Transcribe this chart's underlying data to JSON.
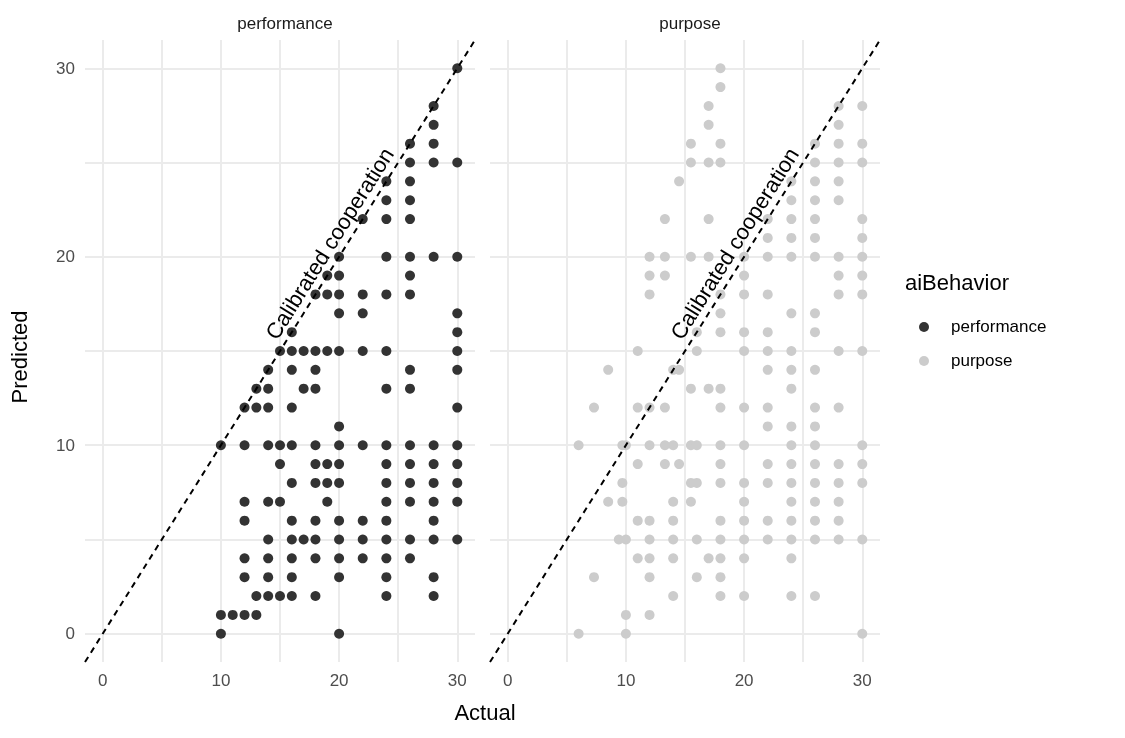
{
  "chart_data": [
    {
      "type": "scatter",
      "title": "performance",
      "xlabel": "Actual",
      "ylabel": "Predicted",
      "xlim": [
        -1.5,
        31.5
      ],
      "ylim": [
        -1.5,
        31.5
      ],
      "xticks": [
        0,
        {
          "value": 5,
          "label": null
        },
        10,
        {
          "value": 15,
          "label": null
        },
        20,
        {
          "value": 25,
          "label": null
        },
        30
      ],
      "yticks": [
        0,
        {
          "value": 5,
          "label": null
        },
        10,
        {
          "value": 15,
          "label": null
        },
        20,
        {
          "value": 25,
          "label": null
        },
        30
      ],
      "grid": true,
      "marker": "circle",
      "annotations": [
        "Calibrated cooperation"
      ],
      "series": [
        {
          "name": "performance",
          "color": "#333333",
          "x": [
            30,
            28,
            28,
            26,
            28,
            26,
            28,
            30,
            24,
            26,
            24,
            26,
            22,
            24,
            26,
            20,
            24,
            26,
            28,
            30,
            19,
            20,
            26,
            18,
            19,
            20,
            22,
            24,
            26,
            20,
            22,
            30,
            16,
            30,
            15,
            16,
            17,
            18,
            19,
            20,
            22,
            24,
            30,
            14,
            16,
            18,
            26,
            30,
            13,
            14,
            17,
            18,
            24,
            26,
            12,
            13,
            14,
            16,
            30,
            20,
            10,
            12,
            14,
            15,
            16,
            18,
            20,
            22,
            24,
            26,
            28,
            30,
            15,
            18,
            19,
            20,
            24,
            26,
            28,
            30,
            16,
            18,
            19,
            20,
            24,
            26,
            28,
            30,
            12,
            14,
            15,
            19,
            24,
            26,
            28,
            30,
            12,
            16,
            18,
            20,
            22,
            24,
            28,
            14,
            16,
            17,
            18,
            20,
            22,
            24,
            26,
            28,
            30,
            12,
            14,
            16,
            18,
            20,
            22,
            24,
            26,
            12,
            14,
            16,
            20,
            24,
            28,
            13,
            14,
            15,
            16,
            18,
            24,
            28,
            10,
            11,
            12,
            13,
            10,
            20
          ],
          "values": [
            30,
            28,
            27,
            26,
            26,
            25,
            25,
            25,
            24,
            24,
            23,
            23,
            22,
            22,
            22,
            20,
            20,
            20,
            20,
            20,
            19,
            19,
            19,
            18,
            18,
            18,
            18,
            18,
            18,
            17,
            17,
            17,
            16,
            16,
            15,
            15,
            15,
            15,
            15,
            15,
            15,
            15,
            15,
            14,
            14,
            14,
            14,
            14,
            13,
            13,
            13,
            13,
            13,
            13,
            12,
            12,
            12,
            12,
            12,
            11,
            10,
            10,
            10,
            10,
            10,
            10,
            10,
            10,
            10,
            10,
            10,
            10,
            9,
            9,
            9,
            9,
            9,
            9,
            9,
            9,
            8,
            8,
            8,
            8,
            8,
            8,
            8,
            8,
            7,
            7,
            7,
            7,
            7,
            7,
            7,
            7,
            6,
            6,
            6,
            6,
            6,
            6,
            6,
            5,
            5,
            5,
            5,
            5,
            5,
            5,
            5,
            5,
            5,
            4,
            4,
            4,
            4,
            4,
            4,
            4,
            4,
            3,
            3,
            3,
            3,
            3,
            3,
            2,
            2,
            2,
            2,
            2,
            2,
            2,
            1,
            1,
            1,
            1,
            0,
            0
          ]
        },
        {
          "type": "line",
          "color": "#000000",
          "line_style": "dashed",
          "marker": "none",
          "x": [
            -1.5,
            31.5
          ],
          "values": [
            -1.5,
            31.5
          ]
        }
      ]
    },
    {
      "type": "scatter",
      "title": "purpose",
      "xlim": [
        -1.5,
        31.5
      ],
      "ylim": [
        -1.5,
        31.5
      ],
      "xticks": [
        0,
        {
          "value": 5,
          "label": null
        },
        10,
        {
          "value": 15,
          "label": null
        },
        20,
        {
          "value": 25,
          "label": null
        },
        30
      ],
      "yticks": [
        0,
        {
          "value": 5,
          "label": null
        },
        10,
        {
          "value": 15,
          "label": null
        },
        20,
        {
          "value": 25,
          "label": null
        },
        30
      ],
      "grid": true,
      "marker": "circle",
      "tick_labels": "x",
      "legend": "right",
      "legend_title": "aiBehavior",
      "annotations": [
        "Calibrated cooperation"
      ],
      "series": [
        {
          "name": "purpose",
          "color": "#cccccc",
          "x": [
            18,
            18,
            17,
            28,
            30,
            17,
            28,
            15.5,
            18,
            26,
            28,
            30,
            15.5,
            17,
            18,
            26,
            28,
            30,
            14.5,
            24,
            26,
            28,
            24,
            26,
            28,
            13.3,
            17,
            22,
            24,
            26,
            30,
            22,
            24,
            26,
            30,
            12,
            13.3,
            15.5,
            17,
            20,
            22,
            24,
            26,
            28,
            30,
            12,
            13.3,
            20,
            28,
            30,
            12,
            18,
            20,
            22,
            28,
            30,
            18,
            24,
            26,
            16,
            18,
            20,
            22,
            26,
            11,
            16,
            20,
            22,
            24,
            28,
            30,
            8.5,
            14,
            14.5,
            22,
            24,
            26,
            15.5,
            17,
            18,
            24,
            7.3,
            11,
            12,
            13.3,
            18,
            20,
            22,
            26,
            28,
            22,
            24,
            26,
            6,
            9.7,
            10,
            12,
            13.3,
            14,
            15.5,
            16,
            18,
            20,
            24,
            26,
            30,
            11,
            13.3,
            14.5,
            18,
            22,
            24,
            26,
            28,
            30,
            9.7,
            15.5,
            16,
            18,
            20,
            22,
            24,
            26,
            28,
            30,
            8.5,
            9.7,
            14,
            15.5,
            20,
            24,
            26,
            28,
            11,
            12,
            14,
            18,
            20,
            22,
            24,
            26,
            28,
            9.4,
            10,
            12,
            14,
            16,
            18,
            20,
            22,
            24,
            26,
            28,
            30,
            11,
            12,
            14,
            17,
            18,
            20,
            24,
            7.3,
            12,
            16,
            18,
            14,
            18,
            20,
            24,
            26,
            10,
            12,
            6,
            10,
            30
          ],
          "values": [
            30,
            29,
            28,
            28,
            28,
            27,
            27,
            26,
            26,
            26,
            26,
            26,
            25,
            25,
            25,
            25,
            25,
            25,
            24,
            24,
            24,
            24,
            23,
            23,
            23,
            22,
            22,
            22,
            22,
            22,
            22,
            21,
            21,
            21,
            21,
            20,
            20,
            20,
            20,
            20,
            20,
            20,
            20,
            20,
            20,
            19,
            19,
            19,
            19,
            19,
            18,
            18,
            18,
            18,
            18,
            18,
            17,
            17,
            17,
            16,
            16,
            16,
            16,
            16,
            15,
            15,
            15,
            15,
            15,
            15,
            15,
            14,
            14,
            14,
            14,
            14,
            14,
            13,
            13,
            13,
            13,
            12,
            12,
            12,
            12,
            12,
            12,
            12,
            12,
            12,
            11,
            11,
            11,
            10,
            10,
            10,
            10,
            10,
            10,
            10,
            10,
            10,
            10,
            10,
            10,
            10,
            9,
            9,
            9,
            9,
            9,
            9,
            9,
            9,
            9,
            8,
            8,
            8,
            8,
            8,
            8,
            8,
            8,
            8,
            8,
            7,
            7,
            7,
            7,
            7,
            7,
            7,
            7,
            6,
            6,
            6,
            6,
            6,
            6,
            6,
            6,
            6,
            5,
            5,
            5,
            5,
            5,
            5,
            5,
            5,
            5,
            5,
            5,
            5,
            4,
            4,
            4,
            4,
            4,
            4,
            4,
            3,
            3,
            3,
            3,
            2,
            2,
            2,
            2,
            2,
            1,
            1,
            0,
            0,
            0
          ]
        },
        {
          "type": "line",
          "color": "#000000",
          "line_style": "dashed",
          "marker": "none",
          "x": [
            -1.5,
            31.5
          ],
          "values": [
            -1.5,
            31.5
          ]
        }
      ]
    }
  ]
}
